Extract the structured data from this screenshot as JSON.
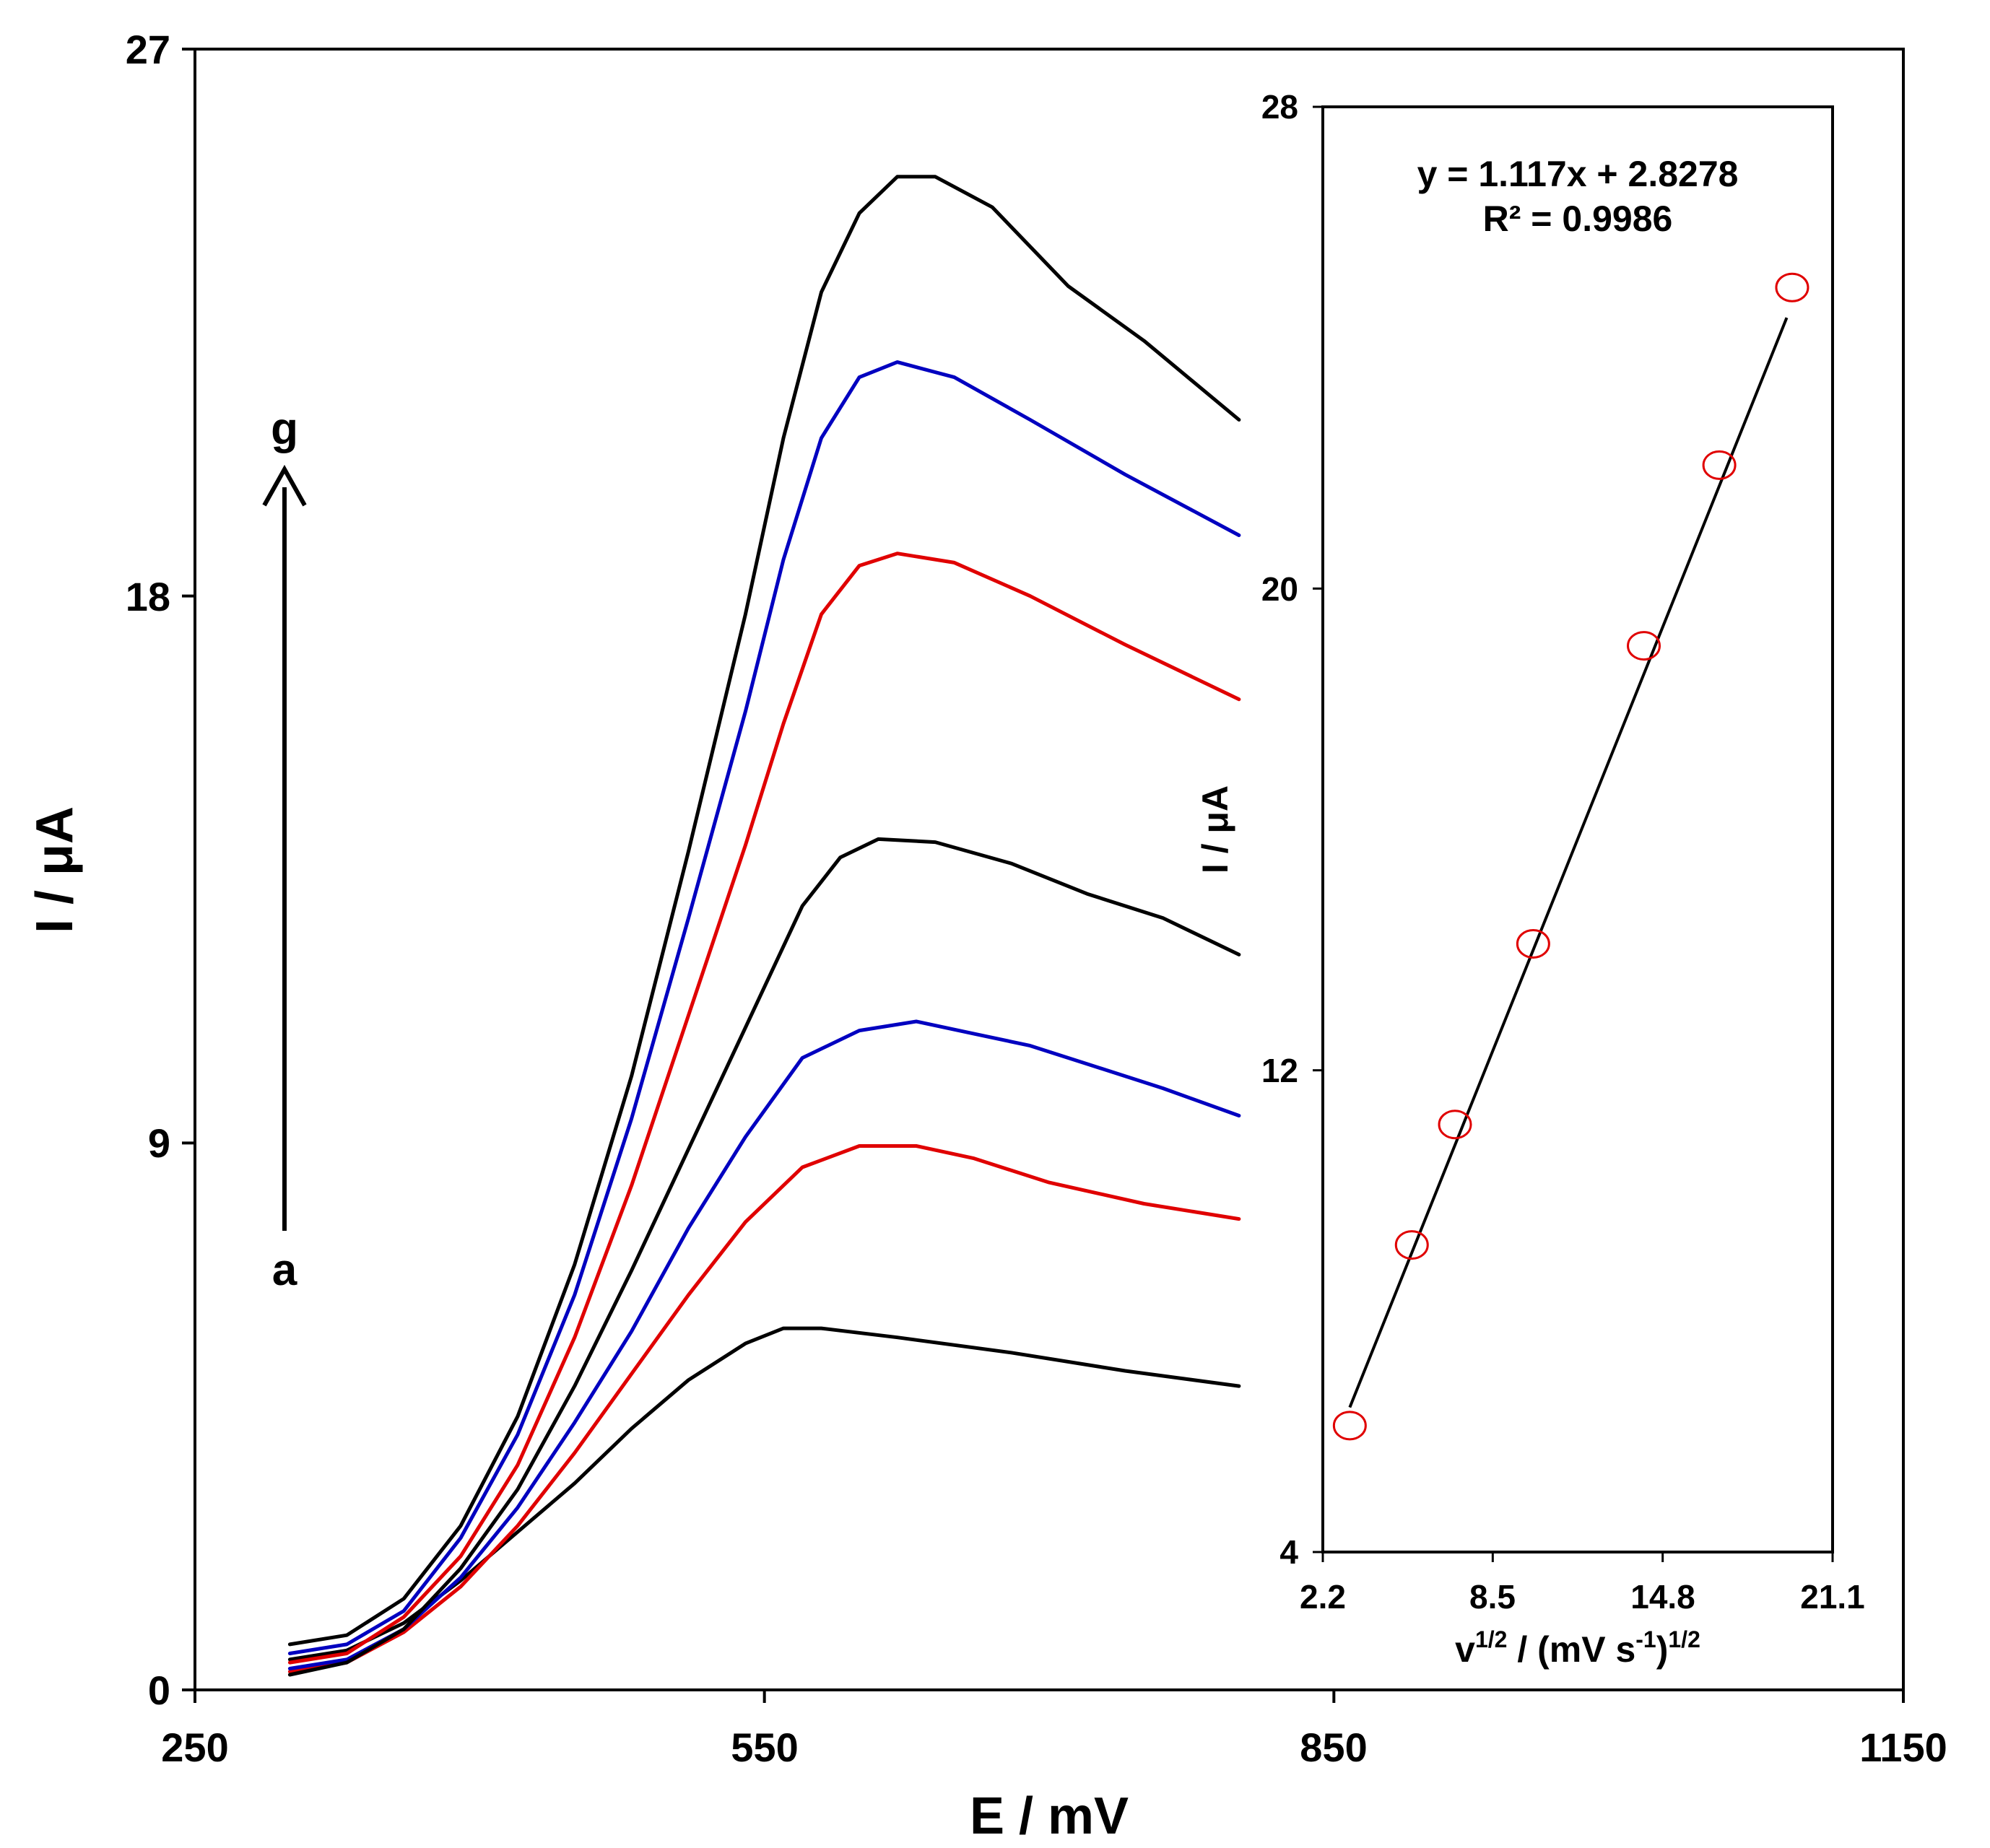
{
  "chart_data": [
    {
      "type": "line",
      "xlabel": "E / mV",
      "ylabel": "I / μA",
      "xlim": [
        250,
        1150
      ],
      "ylim": [
        0,
        27
      ],
      "xticks": [
        "250",
        "550",
        "850",
        "1150"
      ],
      "yticks": [
        "0",
        "9",
        "18",
        "27"
      ],
      "annotations": {
        "start": "a",
        "end": "g"
      },
      "series": [
        {
          "color": "#000000",
          "points": [
            [
              300,
              0.5
            ],
            [
              330,
              0.65
            ],
            [
              360,
              1.1
            ],
            [
              390,
              1.8
            ],
            [
              420,
              2.6
            ],
            [
              450,
              3.4
            ],
            [
              480,
              4.3
            ],
            [
              510,
              5.1
            ],
            [
              540,
              5.7
            ],
            [
              560,
              5.95
            ],
            [
              580,
              5.95
            ],
            [
              620,
              5.8
            ],
            [
              680,
              5.55
            ],
            [
              740,
              5.25
            ],
            [
              800,
              5.0
            ]
          ]
        },
        {
          "color": "#e00000",
          "points": [
            [
              300,
              0.3
            ],
            [
              330,
              0.45
            ],
            [
              360,
              0.95
            ],
            [
              390,
              1.7
            ],
            [
              420,
              2.7
            ],
            [
              450,
              3.9
            ],
            [
              480,
              5.2
            ],
            [
              510,
              6.5
            ],
            [
              540,
              7.7
            ],
            [
              570,
              8.6
            ],
            [
              600,
              8.95
            ],
            [
              630,
              8.95
            ],
            [
              660,
              8.75
            ],
            [
              700,
              8.35
            ],
            [
              750,
              8.0
            ],
            [
              800,
              7.75
            ]
          ]
        },
        {
          "color": "#0000c0",
          "points": [
            [
              300,
              0.35
            ],
            [
              330,
              0.5
            ],
            [
              360,
              1.0
            ],
            [
              390,
              1.85
            ],
            [
              420,
              3.0
            ],
            [
              450,
              4.4
            ],
            [
              480,
              5.9
            ],
            [
              510,
              7.6
            ],
            [
              540,
              9.1
            ],
            [
              570,
              10.4
            ],
            [
              600,
              10.85
            ],
            [
              630,
              11.0
            ],
            [
              660,
              10.8
            ],
            [
              690,
              10.6
            ],
            [
              720,
              10.3
            ],
            [
              760,
              9.9
            ],
            [
              800,
              9.45
            ]
          ]
        },
        {
          "color": "#000000",
          "points": [
            [
              300,
              0.25
            ],
            [
              330,
              0.45
            ],
            [
              360,
              1.0
            ],
            [
              390,
              2.0
            ],
            [
              420,
              3.3
            ],
            [
              450,
              5.0
            ],
            [
              480,
              6.9
            ],
            [
              510,
              8.9
            ],
            [
              540,
              10.9
            ],
            [
              570,
              12.9
            ],
            [
              590,
              13.7
            ],
            [
              610,
              14.0
            ],
            [
              640,
              13.95
            ],
            [
              680,
              13.6
            ],
            [
              720,
              13.1
            ],
            [
              760,
              12.7
            ],
            [
              800,
              12.1
            ]
          ]
        },
        {
          "color": "#e00000",
          "points": [
            [
              300,
              0.45
            ],
            [
              330,
              0.6
            ],
            [
              360,
              1.2
            ],
            [
              390,
              2.2
            ],
            [
              420,
              3.7
            ],
            [
              450,
              5.8
            ],
            [
              480,
              8.3
            ],
            [
              510,
              11.1
            ],
            [
              540,
              13.9
            ],
            [
              560,
              15.9
            ],
            [
              580,
              17.7
            ],
            [
              600,
              18.5
            ],
            [
              620,
              18.7
            ],
            [
              650,
              18.55
            ],
            [
              690,
              18.0
            ],
            [
              740,
              17.2
            ],
            [
              800,
              16.3
            ]
          ]
        },
        {
          "color": "#0000c0",
          "points": [
            [
              300,
              0.6
            ],
            [
              330,
              0.75
            ],
            [
              360,
              1.3
            ],
            [
              390,
              2.5
            ],
            [
              420,
              4.2
            ],
            [
              450,
              6.5
            ],
            [
              480,
              9.4
            ],
            [
              510,
              12.7
            ],
            [
              540,
              16.1
            ],
            [
              560,
              18.6
            ],
            [
              580,
              20.6
            ],
            [
              600,
              21.6
            ],
            [
              620,
              21.85
            ],
            [
              650,
              21.6
            ],
            [
              690,
              20.9
            ],
            [
              740,
              20.0
            ],
            [
              800,
              19.0
            ]
          ]
        },
        {
          "color": "#000000",
          "points": [
            [
              300,
              0.75
            ],
            [
              330,
              0.9
            ],
            [
              360,
              1.5
            ],
            [
              390,
              2.7
            ],
            [
              420,
              4.5
            ],
            [
              450,
              7.0
            ],
            [
              480,
              10.1
            ],
            [
              510,
              13.8
            ],
            [
              540,
              17.7
            ],
            [
              560,
              20.6
            ],
            [
              580,
              23.0
            ],
            [
              600,
              24.3
            ],
            [
              620,
              24.9
            ],
            [
              640,
              24.9
            ],
            [
              670,
              24.4
            ],
            [
              710,
              23.1
            ],
            [
              750,
              22.2
            ],
            [
              800,
              20.9
            ]
          ]
        }
      ]
    },
    {
      "type": "scatter",
      "xlabel": "v1/2 / (mV s-1)1/2",
      "ylabel": "I / μA",
      "xlim": [
        2.2,
        21.1
      ],
      "ylim": [
        4,
        28
      ],
      "xticks": [
        "2.2",
        "8.5",
        "14.8",
        "21.1"
      ],
      "yticks": [
        "4",
        "12",
        "20",
        "28"
      ],
      "x": [
        3.2,
        5.5,
        7.1,
        10.0,
        14.1,
        16.9,
        19.6
      ],
      "y": [
        6.1,
        9.1,
        11.1,
        14.1,
        19.05,
        22.05,
        25.0
      ],
      "marker_color": "#e00000",
      "trendline": {
        "slope": 1.117,
        "intercept": 2.8278,
        "x_range": [
          3.2,
          19.4
        ]
      },
      "equation": "y = 1.117x + 2.8278",
      "r_squared": "R² = 0.9986"
    }
  ]
}
